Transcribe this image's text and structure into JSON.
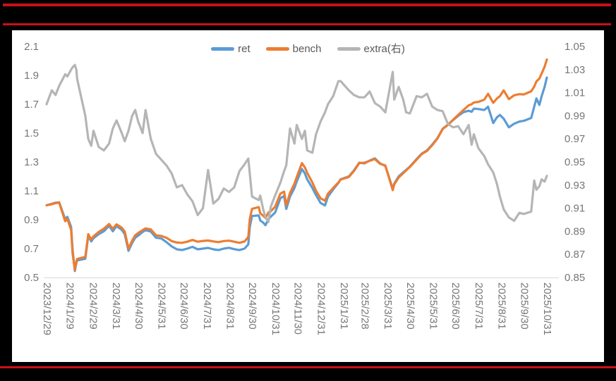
{
  "colors": {
    "page_background": "#000000",
    "rule_red": "#C9101A",
    "panel_background": "#FFFFFF",
    "axis_text": "#767676",
    "axis_line": "#D9D9D9"
  },
  "chart_data": {
    "type": "line",
    "title": "",
    "legend_position": "top-center",
    "grid": false,
    "left_axis": {
      "min": 0.5,
      "max": 2.1,
      "step": 0.2,
      "ticks": [
        "2.1",
        "1.9",
        "1.7",
        "1.5",
        "1.3",
        "1.1",
        "0.9",
        "0.7",
        "0.5"
      ]
    },
    "right_axis": {
      "min": 0.85,
      "max": 1.05,
      "step": 0.02,
      "ticks": [
        "1.05",
        "1.03",
        "1.01",
        "0.99",
        "0.97",
        "0.95",
        "0.93",
        "0.91",
        "0.89",
        "0.87",
        "0.85"
      ]
    },
    "x_tick_labels": [
      "2023/12/29",
      "2024/1/29",
      "2024/2/29",
      "2024/3/31",
      "2024/4/30",
      "2024/5/31",
      "2024/6/30",
      "2024/7/31",
      "2024/8/31",
      "2024/9/30",
      "2024/10/31",
      "2024/11/30",
      "2024/12/31",
      "2025/1/31",
      "2025/2/28",
      "2025/3/31",
      "2025/4/30",
      "2025/5/31",
      "2025/6/30",
      "2025/7/31",
      "2025/8/31",
      "2025/9/30",
      "2025/10/31"
    ],
    "x": [
      "2023/12/29",
      "2024/1/5",
      "2024/1/10",
      "2024/1/15",
      "2024/1/19",
      "2024/1/23",
      "2024/1/26",
      "2024/1/31",
      "2024/2/2",
      "2024/2/5",
      "2024/2/7",
      "2024/2/8",
      "2024/2/19",
      "2024/2/23",
      "2024/2/27",
      "2024/3/1",
      "2024/3/8",
      "2024/3/15",
      "2024/3/22",
      "2024/3/27",
      "2024/4/1",
      "2024/4/8",
      "2024/4/12",
      "2024/4/17",
      "2024/4/22",
      "2024/4/26",
      "2024/4/30",
      "2024/5/6",
      "2024/5/10",
      "2024/5/17",
      "2024/5/24",
      "2024/5/31",
      "2024/6/7",
      "2024/6/14",
      "2024/6/21",
      "2024/6/28",
      "2024/7/5",
      "2024/7/12",
      "2024/7/19",
      "2024/7/26",
      "2024/8/2",
      "2024/8/9",
      "2024/8/16",
      "2024/8/23",
      "2024/8/30",
      "2024/9/6",
      "2024/9/13",
      "2024/9/20",
      "2024/9/25",
      "2024/9/27",
      "2024/9/30",
      "2024/10/9",
      "2024/10/11",
      "2024/10/15",
      "2024/10/18",
      "2024/10/22",
      "2024/10/25",
      "2024/10/31",
      "2024/11/7",
      "2024/11/12",
      "2024/11/15",
      "2024/11/20",
      "2024/11/26",
      "2024/11/29",
      "2024/12/6",
      "2024/12/10",
      "2024/12/13",
      "2024/12/20",
      "2024/12/25",
      "2024/12/31",
      "2025/1/6",
      "2025/1/10",
      "2025/1/17",
      "2025/1/24",
      "2025/1/27",
      "2025/2/7",
      "2025/2/14",
      "2025/2/21",
      "2025/2/28",
      "2025/3/7",
      "2025/3/14",
      "2025/3/21",
      "2025/3/28",
      "2025/4/7",
      "2025/4/9",
      "2025/4/15",
      "2025/4/21",
      "2025/4/25",
      "2025/4/30",
      "2025/5/9",
      "2025/5/16",
      "2025/5/23",
      "2025/5/30",
      "2025/6/6",
      "2025/6/13",
      "2025/6/20",
      "2025/6/27",
      "2025/7/4",
      "2025/7/11",
      "2025/7/18",
      "2025/7/22",
      "2025/7/25",
      "2025/7/31",
      "2025/8/8",
      "2025/8/13",
      "2025/8/20",
      "2025/8/25",
      "2025/8/29",
      "2025/9/3",
      "2025/9/10",
      "2025/9/17",
      "2025/9/24",
      "2025/9/30",
      "2025/10/10",
      "2025/10/14",
      "2025/10/17",
      "2025/10/21",
      "2025/10/24",
      "2025/10/28",
      "2025/10/31"
    ],
    "series": [
      {
        "name": "ret",
        "axis": "left",
        "color": "#5B9BD5",
        "values": [
          1.0,
          1.01,
          1.018,
          1.02,
          0.96,
          0.905,
          0.92,
          0.85,
          0.69,
          0.545,
          0.6,
          0.618,
          0.63,
          0.79,
          0.75,
          0.772,
          0.8,
          0.82,
          0.858,
          0.82,
          0.856,
          0.83,
          0.8,
          0.685,
          0.74,
          0.775,
          0.79,
          0.815,
          0.828,
          0.818,
          0.775,
          0.77,
          0.745,
          0.715,
          0.695,
          0.69,
          0.7,
          0.712,
          0.695,
          0.7,
          0.705,
          0.695,
          0.69,
          0.7,
          0.706,
          0.696,
          0.69,
          0.7,
          0.73,
          0.85,
          0.926,
          0.93,
          0.895,
          0.88,
          0.862,
          0.905,
          0.92,
          0.95,
          1.048,
          1.065,
          0.975,
          1.06,
          1.12,
          1.165,
          1.251,
          1.22,
          1.18,
          1.12,
          1.07,
          1.016,
          0.999,
          1.06,
          1.11,
          1.155,
          1.18,
          1.2,
          1.242,
          1.295,
          1.29,
          1.31,
          1.325,
          1.29,
          1.272,
          1.115,
          1.15,
          1.2,
          1.228,
          1.245,
          1.268,
          1.32,
          1.358,
          1.38,
          1.42,
          1.465,
          1.53,
          1.558,
          1.59,
          1.62,
          1.645,
          1.655,
          1.648,
          1.67,
          1.667,
          1.66,
          1.683,
          1.57,
          1.61,
          1.626,
          1.6,
          1.54,
          1.565,
          1.58,
          1.585,
          1.605,
          1.683,
          1.74,
          1.695,
          1.755,
          1.82,
          1.885
        ]
      },
      {
        "name": "bench",
        "axis": "left",
        "color": "#ED7D31",
        "values": [
          1.0,
          1.008,
          1.015,
          1.018,
          0.952,
          0.89,
          0.905,
          0.83,
          0.665,
          0.552,
          0.61,
          0.628,
          0.643,
          0.8,
          0.763,
          0.785,
          0.815,
          0.838,
          0.87,
          0.838,
          0.868,
          0.845,
          0.818,
          0.7,
          0.755,
          0.792,
          0.808,
          0.828,
          0.84,
          0.833,
          0.792,
          0.788,
          0.775,
          0.752,
          0.742,
          0.74,
          0.748,
          0.76,
          0.748,
          0.753,
          0.756,
          0.75,
          0.745,
          0.752,
          0.755,
          0.748,
          0.74,
          0.75,
          0.78,
          0.905,
          0.975,
          0.988,
          0.945,
          0.928,
          0.912,
          0.95,
          0.958,
          0.99,
          1.08,
          1.095,
          1.0,
          1.085,
          1.15,
          1.195,
          1.292,
          1.262,
          1.225,
          1.158,
          1.1,
          1.048,
          1.032,
          1.08,
          1.12,
          1.158,
          1.178,
          1.196,
          1.238,
          1.292,
          1.295,
          1.308,
          1.32,
          1.287,
          1.276,
          1.105,
          1.145,
          1.192,
          1.222,
          1.242,
          1.266,
          1.316,
          1.355,
          1.376,
          1.416,
          1.462,
          1.528,
          1.556,
          1.592,
          1.626,
          1.66,
          1.692,
          1.7,
          1.712,
          1.716,
          1.732,
          1.772,
          1.71,
          1.74,
          1.756,
          1.796,
          1.735,
          1.762,
          1.77,
          1.768,
          1.79,
          1.822,
          1.858,
          1.878,
          1.912,
          1.96,
          2.01
        ]
      },
      {
        "name": "extra(右)",
        "axis": "right",
        "color": "#B5B5B5",
        "values": [
          1.0,
          1.012,
          1.008,
          1.016,
          1.021,
          1.026,
          1.024,
          1.03,
          1.032,
          1.034,
          1.03,
          1.022,
          0.99,
          0.97,
          0.964,
          0.977,
          0.963,
          0.96,
          0.966,
          0.979,
          0.986,
          0.975,
          0.968,
          0.977,
          0.99,
          0.995,
          0.985,
          0.975,
          0.995,
          0.97,
          0.957,
          0.952,
          0.947,
          0.94,
          0.928,
          0.93,
          0.922,
          0.916,
          0.904,
          0.91,
          0.943,
          0.914,
          0.918,
          0.927,
          0.924,
          0.928,
          0.942,
          0.948,
          0.953,
          0.94,
          0.92,
          0.917,
          0.921,
          0.909,
          0.902,
          0.898,
          0.911,
          0.921,
          0.932,
          0.942,
          0.947,
          0.979,
          0.966,
          0.982,
          0.97,
          0.977,
          0.96,
          0.958,
          0.974,
          0.985,
          0.993,
          1.0,
          1.007,
          1.02,
          1.02,
          1.012,
          1.008,
          1.006,
          1.006,
          1.011,
          1.001,
          0.998,
          0.993,
          1.028,
          1.004,
          1.015,
          1.004,
          0.993,
          0.992,
          1.007,
          1.006,
          1.009,
          0.998,
          0.995,
          0.994,
          0.983,
          0.98,
          0.981,
          0.974,
          0.982,
          0.965,
          0.974,
          0.962,
          0.955,
          0.948,
          0.941,
          0.931,
          0.92,
          0.909,
          0.902,
          0.899,
          0.906,
          0.905,
          0.907,
          0.934,
          0.926,
          0.929,
          0.935,
          0.933,
          0.938
        ]
      }
    ]
  }
}
